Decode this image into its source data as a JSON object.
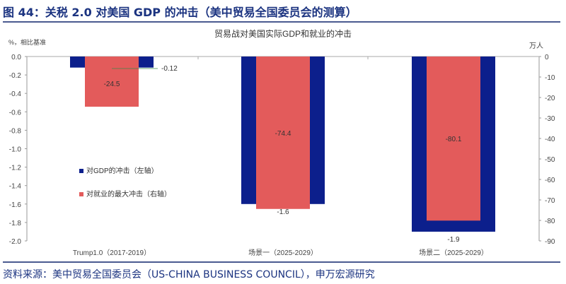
{
  "figure_title": "图 44：关税 2.0 对美国 GDP 的冲击（美中贸易全国委员会的测算）",
  "source": "资料来源：美中贸易全国委员会（US-CHINA BUSINESS COUNCIL），申万宏源研究",
  "chart_data": {
    "type": "bar",
    "title": "贸易战对美国实际GDP和就业的冲击",
    "ylabel_left": "%，相比基准",
    "ylabel_right": "万人",
    "categories": [
      "Trump1.0（2017-2019）",
      "场景一（2025-2029）",
      "场景二（2025-2029）"
    ],
    "ylim_left": [
      -2.0,
      0.0
    ],
    "ylim_right": [
      -90,
      0
    ],
    "left_ticks": [
      "0.0",
      "-0.2",
      "-0.4",
      "-0.6",
      "-0.8",
      "-1.0",
      "-1.2",
      "-1.4",
      "-1.6",
      "-1.8",
      "-2.0"
    ],
    "right_ticks": [
      "0",
      "-10",
      "-20",
      "-30",
      "-40",
      "-50",
      "-60",
      "-70",
      "-80",
      "-90"
    ],
    "legend_position": "left-middle",
    "series": [
      {
        "name": "对GDP的冲击（左轴）",
        "axis": "left",
        "color": "#0c1f8c",
        "values": [
          -0.12,
          -1.6,
          -1.9
        ],
        "labels": [
          "-0.12",
          "-1.6",
          "-1.9"
        ]
      },
      {
        "name": "对就业的最大冲击（右轴）",
        "axis": "right",
        "color": "#e35b5b",
        "values": [
          -24.5,
          -74.4,
          -80.1
        ],
        "labels": [
          "-24.5",
          "-74.4",
          "-80.1"
        ]
      }
    ]
  }
}
